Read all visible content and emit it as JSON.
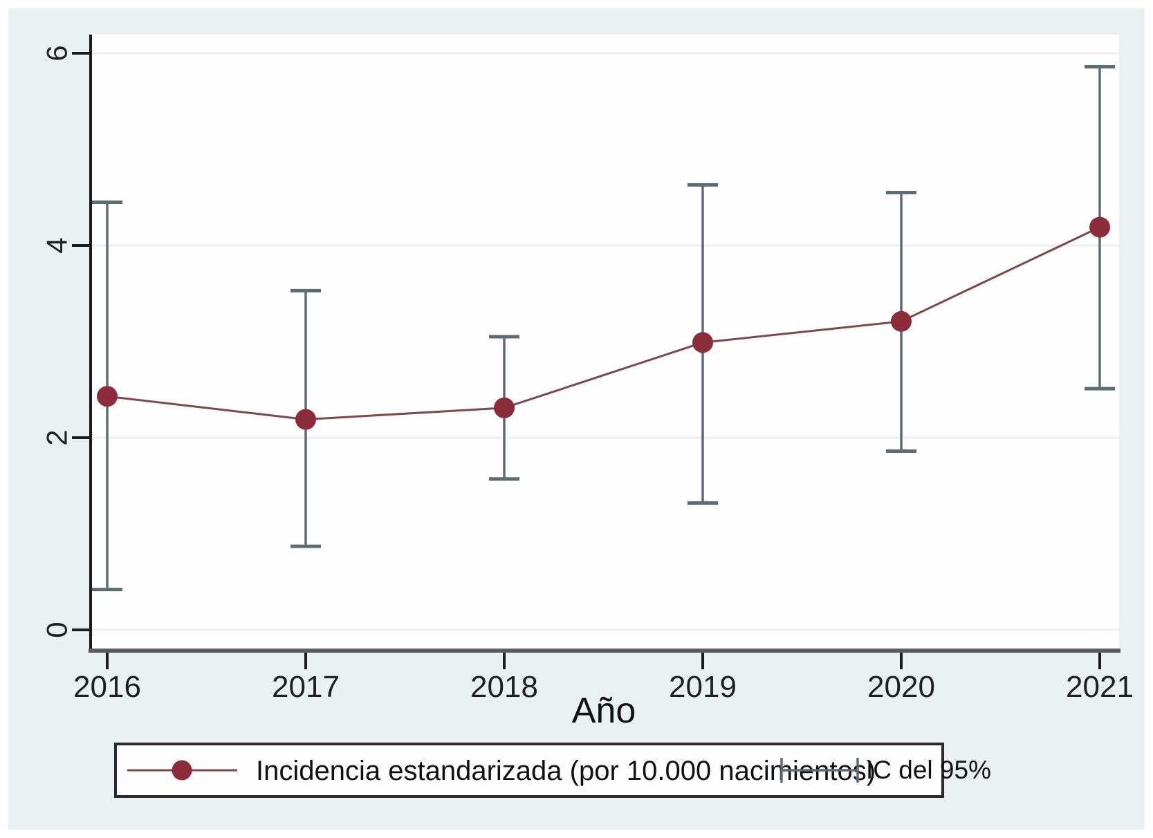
{
  "figure": {
    "xlabel": "Año",
    "legend": {
      "series_label": "Incidencia estandarizada (por 10.000 nacimientos)",
      "ci_label": "IC del 95%"
    }
  },
  "colors": {
    "canvas_background": "#e9f1f1",
    "plot_background": "#fefefe",
    "gridline": "#f0efee",
    "y_axis": "#1c1c1c",
    "x_axis": "#5c5c5c",
    "tick": "#1c1c1c",
    "tick_label": "#1f1f1f",
    "series_line": "#7c474d",
    "marker": "#8c2c3b",
    "error_bar": "#5d6b73",
    "legend_background": "#fdfdfd",
    "legend_border": "#2b2b2b",
    "text": "#111111"
  },
  "chart_data": {
    "type": "line",
    "title": "",
    "xlabel": "Año",
    "ylabel": "",
    "categories": [
      2016,
      2017,
      2018,
      2019,
      2020,
      2021
    ],
    "series": [
      {
        "name": "Incidencia estandarizada (por 10.000 nacimientos)",
        "values": [
          2.43,
          2.19,
          2.31,
          2.99,
          3.21,
          4.19
        ],
        "ci_low": [
          0.42,
          0.87,
          1.57,
          1.32,
          1.86,
          2.51
        ],
        "ci_high": [
          4.45,
          3.53,
          3.05,
          4.63,
          4.55,
          5.86
        ],
        "ci_name": "IC del 95%"
      }
    ],
    "ylim": [
      0,
      6
    ],
    "yticks": [
      0,
      2,
      4,
      6
    ],
    "grid": "horizontal-faint",
    "legend_position": "bottom",
    "marker": "filled-circle",
    "error_bars": true
  }
}
